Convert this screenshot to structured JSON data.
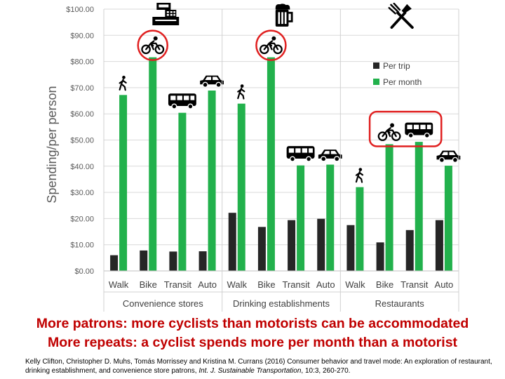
{
  "chart_data": {
    "type": "bar",
    "ylabel": "Spending/per person",
    "ylim": [
      0,
      100
    ],
    "yticks": [
      "$0.00",
      "$10.00",
      "$20.00",
      "$30.00",
      "$40.00",
      "$50.00",
      "$60.00",
      "$70.00",
      "$80.00",
      "$90.00",
      "$100.00"
    ],
    "groups": [
      {
        "name": "Convenience stores",
        "categories": [
          "Walk",
          "Bike",
          "Transit",
          "Auto"
        ]
      },
      {
        "name": "Drinking establishments",
        "categories": [
          "Walk",
          "Bike",
          "Transit",
          "Auto"
        ]
      },
      {
        "name": "Restaurants",
        "categories": [
          "Walk",
          "Bike",
          "Transit",
          "Auto"
        ]
      }
    ],
    "series": [
      {
        "name": "Per trip",
        "color": "#262626",
        "values": [
          6.0,
          7.8,
          7.4,
          7.5,
          22.2,
          16.8,
          19.4,
          19.9,
          17.5,
          10.9,
          15.6,
          19.4
        ]
      },
      {
        "name": "Per month",
        "color": "#22b14c",
        "values": [
          67.2,
          81.6,
          60.4,
          68.9,
          63.9,
          81.6,
          40.3,
          40.6,
          32.0,
          48.4,
          49.3,
          40.2
        ]
      }
    ],
    "icons": [
      "walk-icon",
      "bike-icon",
      "bus-icon",
      "car-icon",
      "walk-icon",
      "bike-icon",
      "bus-icon",
      "car-icon",
      "walk-icon",
      "bike-icon",
      "bus-icon",
      "car-icon"
    ],
    "group_icons": [
      "cash-register-icon",
      "beer-mug-icon",
      "fork-knife-icon"
    ],
    "highlight_color": "#e02020",
    "legend_position": "top-right"
  },
  "headline": {
    "line1": "More patrons: more cyclists than motorists can be accommodated",
    "line2": "More repeats: a cyclist spends more per month than a motorist"
  },
  "citation": {
    "text": "Kelly Clifton, Christopher D. Muhs, Tomás Morrissey and Kristina M. Currans (2016) Consumer behavior and travel mode: An exploration of restaurant, drinking establishment, and convenience store patrons,",
    "journal": "Int. J. Sustainable Transportation",
    "details": ", 10:3, 260-270."
  }
}
